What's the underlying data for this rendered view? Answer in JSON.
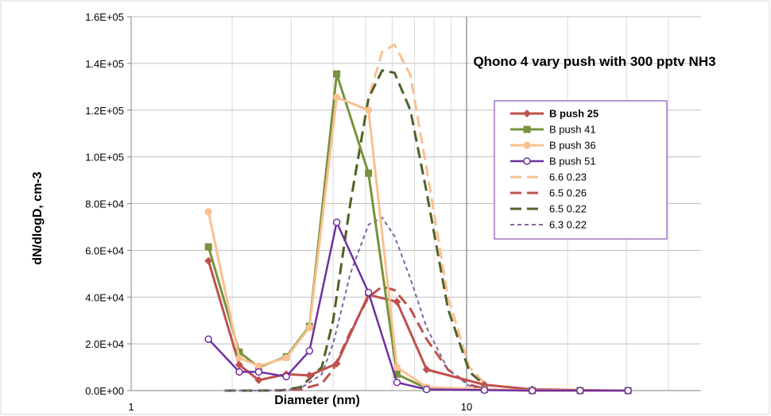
{
  "chart_data": {
    "type": "line",
    "title": "Qhono 4 vary push with 300 pptv NH3",
    "xlabel": "Diameter (nm)",
    "ylabel": "dN/dlogD, cm-3",
    "x_scale": "log",
    "xlim": [
      1,
      50
    ],
    "ylim": [
      0,
      160000
    ],
    "x_tick_labels": [
      {
        "value": 1,
        "label": "1"
      },
      {
        "value": 10,
        "label": "10"
      }
    ],
    "y_ticks": [
      0,
      20000,
      40000,
      60000,
      80000,
      100000,
      120000,
      140000,
      160000
    ],
    "y_tick_labels": [
      "0.0E+00",
      "2.0E+04",
      "4.0E+04",
      "6.0E+04",
      "8.0E+04",
      "1.0E+05",
      "1.2E+05",
      "1.4E+05",
      "1.6E+05"
    ],
    "grid": {
      "x_minor": true,
      "y_major": true
    },
    "reference_line_x": 10,
    "legend_position": "right",
    "series": [
      {
        "name": "B push 25",
        "color": "#c0504d",
        "marker": "diamond",
        "dash": "solid",
        "width": 3,
        "x": [
          1.7,
          2.1,
          2.4,
          2.9,
          3.4,
          4.1,
          5.1,
          6.2,
          7.6,
          11.3,
          15.7,
          21.8,
          30.3
        ],
        "y": [
          55500,
          11000,
          4500,
          7000,
          6500,
          11500,
          41000,
          38000,
          9000,
          2500,
          500,
          200,
          0
        ]
      },
      {
        "name": "B push 41",
        "color": "#77933c",
        "marker": "square",
        "dash": "solid",
        "width": 3,
        "x": [
          1.7,
          2.1,
          2.4,
          2.9,
          3.4,
          4.1,
          5.1,
          6.2,
          7.6,
          11.3,
          15.7,
          21.8,
          30.3
        ],
        "y": [
          61500,
          16500,
          10000,
          14500,
          27500,
          135500,
          93000,
          7000,
          1000,
          500,
          0,
          0,
          0
        ]
      },
      {
        "name": "B push 36",
        "color": "#fac090",
        "marker": "circle",
        "dash": "solid",
        "width": 3,
        "x": [
          1.7,
          2.1,
          2.4,
          2.9,
          3.4,
          4.1,
          5.1,
          6.2,
          7.6,
          11.3,
          15.7,
          21.8,
          30.3
        ],
        "y": [
          76500,
          14000,
          10500,
          14000,
          27000,
          125500,
          120000,
          10000,
          1500,
          500,
          0,
          0,
          0
        ]
      },
      {
        "name": "B push 51",
        "color": "#7030a0",
        "marker": "open-circle",
        "dash": "solid",
        "width": 2.5,
        "x": [
          1.7,
          2.1,
          2.4,
          2.9,
          3.4,
          4.1,
          5.1,
          6.2,
          7.6,
          11.3,
          15.7,
          21.8,
          30.3
        ],
        "y": [
          22000,
          8000,
          8000,
          6000,
          17000,
          72000,
          42000,
          3500,
          500,
          200,
          0,
          0,
          0
        ]
      },
      {
        "name": "6.6 0.23",
        "color": "#fac090",
        "marker": "none",
        "dash": "long",
        "width": 3,
        "x": [
          1.9,
          2.3,
          2.8,
          3.2,
          3.7,
          4.0,
          4.5,
          5.1,
          5.6,
          6.1,
          6.8,
          7.6,
          8.8,
          10.2,
          11.5
        ],
        "y": [
          0,
          0,
          100,
          1500,
          10000,
          30000,
          80000,
          125000,
          145000,
          148000,
          135000,
          95000,
          40000,
          10000,
          2000
        ]
      },
      {
        "name": "6.5 0.26",
        "color": "#c0504d",
        "marker": "none",
        "dash": "long",
        "width": 3,
        "x": [
          1.9,
          2.3,
          2.8,
          3.2,
          3.7,
          4.0,
          4.5,
          5.1,
          5.6,
          6.1,
          6.8,
          7.6,
          8.8,
          10.2,
          11.5
        ],
        "y": [
          0,
          0,
          100,
          500,
          3000,
          9000,
          25000,
          40000,
          44500,
          43000,
          35000,
          22000,
          9000,
          2500,
          500
        ]
      },
      {
        "name": "6.5 0.22",
        "color": "#4f6228",
        "marker": "none",
        "dash": "long",
        "width": 3,
        "x": [
          1.9,
          2.3,
          2.8,
          3.2,
          3.7,
          4.0,
          4.5,
          5.1,
          5.6,
          6.1,
          6.8,
          7.6,
          8.8,
          10.2,
          11.5
        ],
        "y": [
          0,
          0,
          100,
          1500,
          10000,
          30000,
          80000,
          125000,
          137000,
          136000,
          120000,
          85000,
          35000,
          8000,
          1500
        ]
      },
      {
        "name": "6.3 0.22",
        "color": "#8064a2",
        "marker": "none",
        "dash": "short",
        "width": 2,
        "x": [
          1.9,
          2.3,
          2.8,
          3.2,
          3.7,
          4.0,
          4.5,
          5.1,
          5.6,
          6.1,
          6.8,
          7.6,
          8.8,
          10.2,
          11.5
        ],
        "y": [
          0,
          0,
          100,
          1000,
          7000,
          20000,
          50000,
          71000,
          74000,
          66000,
          48000,
          27000,
          9000,
          2000,
          300
        ]
      }
    ]
  }
}
